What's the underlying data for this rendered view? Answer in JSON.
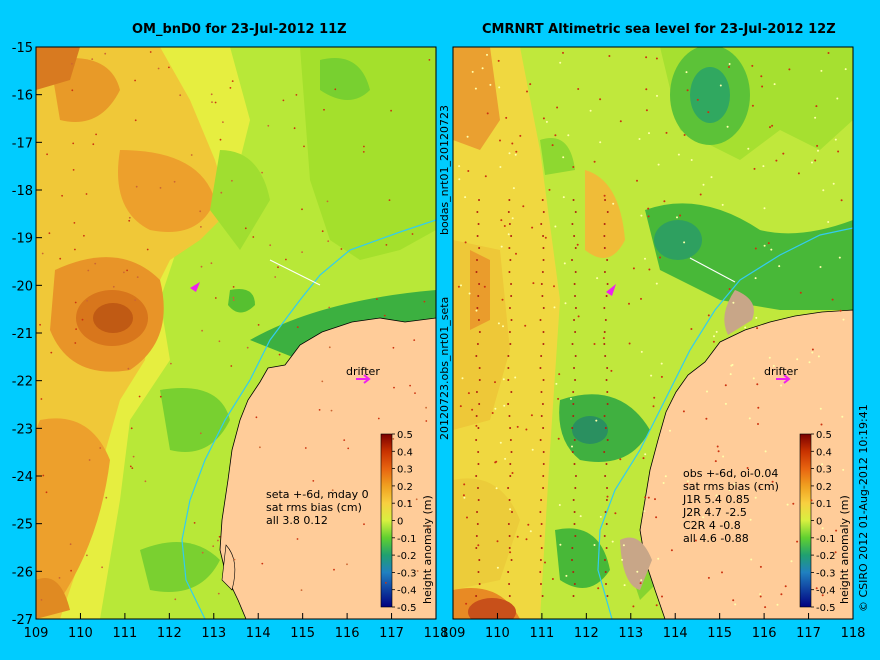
{
  "panels": [
    {
      "title": "OM_bnD0 for 23-Jul-2012 11Z",
      "x_ticks": [
        "109",
        "110",
        "111",
        "112",
        "113",
        "114",
        "115",
        "116",
        "117",
        "118"
      ],
      "y_ticks": [
        "-15",
        "-16",
        "-17",
        "-18",
        "-19",
        "-20",
        "-21",
        "-22",
        "-23",
        "-24",
        "-25",
        "-26",
        "-27"
      ],
      "drifter_label": "drifter",
      "stats_lines": [
        "seta +-6d, mday 0",
        "sat rms bias (cm)",
        "all 3.8 0.12"
      ]
    },
    {
      "title": "CMRNRT Altimetric sea level  for 23-Jul-2012 12Z",
      "x_ticks": [
        "109",
        "110",
        "111",
        "112",
        "113",
        "114",
        "115",
        "116",
        "117",
        "118"
      ],
      "drifter_label": "drifter",
      "stats_lines": [
        "obs +-6d, oi-0.04",
        "sat rms bias (cm)",
        "J1R   5.4 0.85",
        "J2R   4.7 -2.5",
        "C2R   4 -0.8",
        "all 4.6 -0.88"
      ]
    }
  ],
  "vertical_labels": {
    "middle_top": "bodas_nrt01_20120723",
    "middle_bottom": "20120723.obs_nrt01_seta",
    "right_credit": "© CSIRO 2012  01-Aug-2012 10:19:41"
  },
  "colorbar": {
    "label": "height anomaly (m)",
    "ticks": [
      "0.5",
      "0.4",
      "0.3",
      "0.2",
      "0.1",
      "0",
      "-0.1",
      "-0.2",
      "-0.3",
      "-0.4",
      "-0.5"
    ],
    "colors": [
      "#7a0000",
      "#c83200",
      "#e86410",
      "#f0a020",
      "#f8d040",
      "#e8f040",
      "#a0e030",
      "#40c040",
      "#20a0a0",
      "#2060c0",
      "#000080"
    ]
  },
  "colors": {
    "background": "#00ccff",
    "land": "#ffcc99",
    "coastline_track": "#33ccee"
  }
}
